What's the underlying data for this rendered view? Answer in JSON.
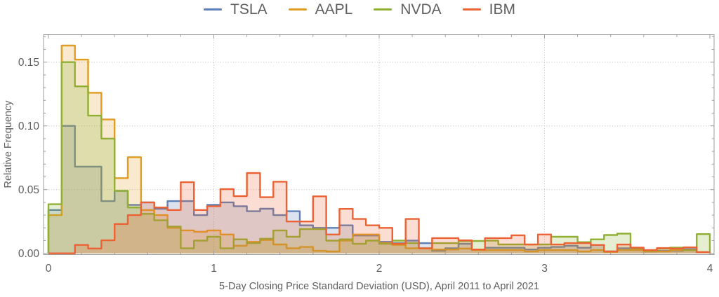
{
  "legend": {
    "items": [
      {
        "label": "TSLA",
        "color": "#5e81b5"
      },
      {
        "label": "AAPL",
        "color": "#e19c24"
      },
      {
        "label": "NVDA",
        "color": "#8fb032"
      },
      {
        "label": "IBM",
        "color": "#eb6235"
      }
    ]
  },
  "chart_data": {
    "type": "histogram-step",
    "title": "",
    "xlabel": "5-Day Closing Price Standard Deviation (USD), April 2011 to April 2021",
    "ylabel": "Relative Frequency",
    "bin_start": 0,
    "bin_width": 0.08,
    "xlim": [
      0,
      4
    ],
    "ylim": [
      0,
      0.1715
    ],
    "grid": {
      "x": [
        1,
        2,
        3
      ],
      "y": [
        0.05,
        0.1,
        0.15
      ]
    },
    "x_major_ticks": [
      0,
      1,
      2,
      3,
      4
    ],
    "x_tick_labels": [
      "0",
      "1",
      "2",
      "3",
      "4"
    ],
    "x_minor_step": 0.2,
    "y_major_ticks": [
      0,
      0.05,
      0.1,
      0.15
    ],
    "y_tick_labels": [
      "0.00",
      "0.05",
      "0.10",
      "0.15"
    ],
    "y_minor_step": 0.01,
    "legend_position": "top-center",
    "fill_opacity": 0.22,
    "series": [
      {
        "name": "TSLA",
        "color": "#5e81b5",
        "values": [
          0.034,
          0.1,
          0.068,
          0.068,
          0.041,
          0.049,
          0.038,
          0.04,
          0.035,
          0.041,
          0.041,
          0.03,
          0.038,
          0.04,
          0.037,
          0.033,
          0.035,
          0.03,
          0.033,
          0.022,
          0.02,
          0.02,
          0.022,
          0.014,
          0.014,
          0.009,
          0.008,
          0.01,
          0.008,
          0.002,
          0.004,
          0.0075,
          0.003,
          0.0044,
          0.0044,
          0.0044,
          0.003,
          0.0044,
          0.005,
          0.006,
          0.0044,
          0.0066,
          0.0015,
          0.004,
          0.003,
          0.0015,
          0.002,
          0.002,
          0.0033,
          0.001
        ]
      },
      {
        "name": "AAPL",
        "color": "#e19c24",
        "values": [
          0.03,
          0.163,
          0.152,
          0.126,
          0.105,
          0.059,
          0.0754,
          0.034,
          0.03,
          0.02,
          0.018,
          0.017,
          0.018,
          0.0148,
          0.006,
          0.009,
          0.0105,
          0.007,
          0.004,
          0.005,
          0.002,
          0.0015,
          0.01,
          0.0148,
          0.0148,
          0.008,
          0.0066,
          0.004,
          0.004,
          0.003,
          0.003,
          0.0038,
          0.0026,
          0.0026,
          0.0026,
          0.0026,
          0.0015,
          0.0026,
          0.0026,
          0.0026,
          0.0015,
          0.0026,
          0.0011,
          0.0026,
          0.0026,
          0.0015,
          0.0015,
          0.0026,
          0.0026,
          0.001
        ]
      },
      {
        "name": "NVDA",
        "color": "#8fb032",
        "values": [
          0.0385,
          0.15,
          0.131,
          0.108,
          0.09,
          0.049,
          0.036,
          0.031,
          0.026,
          0.021,
          0.004,
          0.01,
          0.013,
          0.004,
          0.011,
          0.008,
          0.0115,
          0.018,
          0.013,
          0.019,
          0.019,
          0.01,
          0.011,
          0.0075,
          0.01,
          0.0075,
          0.01,
          0.008,
          0.004,
          0.008,
          0.008,
          0.0097,
          0.0097,
          0.01,
          0.007,
          0.007,
          0.007,
          0.007,
          0.013,
          0.013,
          0.0088,
          0.011,
          0.0144,
          0.0155,
          0.004,
          0.002,
          0.0038,
          0.0045,
          0.0026,
          0.0151
        ]
      },
      {
        "name": "IBM",
        "color": "#eb6235",
        "values": [
          0.0,
          0.0,
          0.0066,
          0.0038,
          0.0102,
          0.023,
          0.03,
          0.04,
          0.036,
          0.034,
          0.0558,
          0.034,
          0.037,
          0.0504,
          0.0449,
          0.063,
          0.044,
          0.0562,
          0.025,
          0.025,
          0.0447,
          0.0148,
          0.0349,
          0.027,
          0.022,
          0.02,
          0.0075,
          0.027,
          0.004,
          0.012,
          0.012,
          0.0102,
          0.003,
          0.012,
          0.012,
          0.0142,
          0.0069,
          0.0148,
          0.0069,
          0.008,
          0.008,
          0.0066,
          0.0015,
          0.0069,
          0.0045,
          0.0026,
          0.0042,
          0.0038,
          0.0047,
          0.001
        ]
      }
    ]
  }
}
